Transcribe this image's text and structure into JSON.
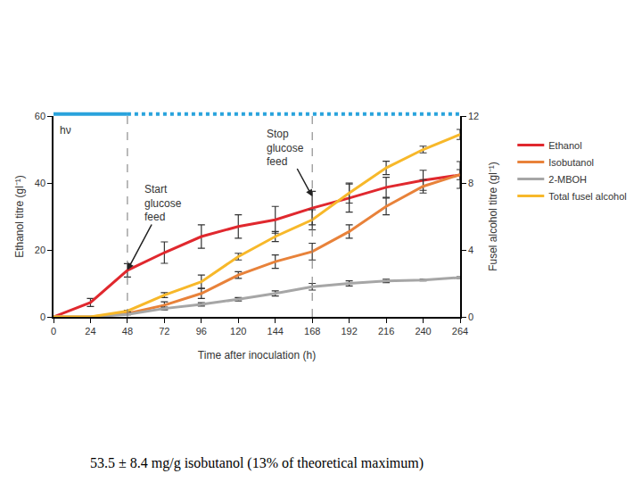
{
  "chart_data": {
    "type": "line",
    "x": [
      0,
      24,
      48,
      72,
      96,
      120,
      144,
      168,
      192,
      216,
      240,
      264
    ],
    "xlabel": "Time after inoculation (h)",
    "ylabel": "Ethanol titre (gl⁻¹)",
    "y2label": "Fusel alcohol titre (gl⁻¹)",
    "xlim": [
      0,
      264
    ],
    "xticks": [
      0,
      24,
      48,
      72,
      96,
      120,
      144,
      168,
      192,
      216,
      240,
      264
    ],
    "ylim": [
      0,
      60
    ],
    "yticks": [
      0,
      20,
      40,
      60
    ],
    "y2lim": [
      0,
      12
    ],
    "y2ticks": [
      0,
      4,
      8,
      12
    ],
    "legend": "right",
    "series": [
      {
        "name": "Ethanol",
        "color": "#e0282e",
        "axis": "y",
        "values": [
          0,
          4.3,
          13.9,
          19.2,
          24.0,
          27.0,
          29.0,
          32.5,
          35.5,
          38.7,
          40.8,
          42.4
        ],
        "errors": [
          0,
          1.2,
          2.0,
          3.2,
          3.5,
          3.5,
          4.0,
          5.0,
          4.2,
          3.0,
          3.0,
          4.0
        ]
      },
      {
        "name": "Isobutanol",
        "color": "#e8823a",
        "axis": "y2",
        "values": [
          0,
          0,
          0.2,
          0.7,
          1.4,
          2.5,
          3.3,
          3.9,
          5.1,
          6.6,
          7.8,
          8.5
        ],
        "errors": [
          0,
          0,
          0.05,
          0.2,
          0.3,
          0.2,
          0.4,
          0.5,
          0.4,
          0.5,
          0.4,
          0.3
        ]
      },
      {
        "name": "2-MBOH",
        "color": "#a6a6a6",
        "axis": "y2",
        "values": [
          0,
          0,
          0.15,
          0.5,
          0.75,
          1.05,
          1.4,
          1.8,
          2.0,
          2.15,
          2.2,
          2.35
        ],
        "errors": [
          0,
          0,
          0.03,
          0.08,
          0.1,
          0.1,
          0.15,
          0.2,
          0.15,
          0.1,
          0.05,
          0.05
        ]
      },
      {
        "name": "Total fusel alcohol",
        "color": "#f7b82a",
        "axis": "y2",
        "values": [
          0,
          0,
          0.35,
          1.3,
          2.1,
          3.6,
          4.8,
          5.8,
          7.4,
          8.9,
          10.0,
          10.9
        ],
        "errors": [
          0,
          0,
          0.05,
          0.15,
          0.4,
          0.2,
          0.3,
          0.6,
          0.6,
          0.4,
          0.2,
          0.3
        ]
      }
    ],
    "annotations": [
      {
        "text": "Start glucose feed",
        "x": 48,
        "y": 14
      },
      {
        "text": "Stop glucose feed",
        "x": 168,
        "y": 36
      }
    ],
    "light_label": "hν",
    "caption": "53.5 ± 8.4 mg/g isobutanol (13% of theoretical maximum)"
  }
}
